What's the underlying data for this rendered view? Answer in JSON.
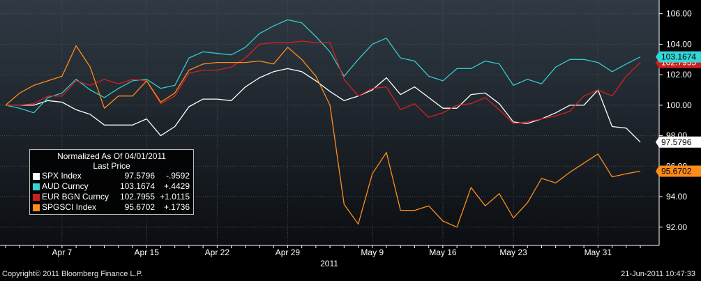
{
  "chart_data": {
    "type": "line",
    "title": "",
    "x": [
      "2011-04-01",
      "2011-04-04",
      "2011-04-05",
      "2011-04-06",
      "2011-04-07",
      "2011-04-08",
      "2011-04-11",
      "2011-04-12",
      "2011-04-13",
      "2011-04-14",
      "2011-04-15",
      "2011-04-18",
      "2011-04-19",
      "2011-04-20",
      "2011-04-21",
      "2011-04-22",
      "2011-04-25",
      "2011-04-26",
      "2011-04-27",
      "2011-04-28",
      "2011-04-29",
      "2011-05-02",
      "2011-05-03",
      "2011-05-04",
      "2011-05-05",
      "2011-05-06",
      "2011-05-09",
      "2011-05-10",
      "2011-05-11",
      "2011-05-12",
      "2011-05-13",
      "2011-05-16",
      "2011-05-17",
      "2011-05-18",
      "2011-05-19",
      "2011-05-20",
      "2011-05-23",
      "2011-05-24",
      "2011-05-25",
      "2011-05-26",
      "2011-05-27",
      "2011-05-30",
      "2011-05-31",
      "2011-06-01",
      "2011-06-02",
      "2011-06-03"
    ],
    "x_ticks": [
      {
        "date": "2011-04-07",
        "label": "Apr 7"
      },
      {
        "date": "2011-04-15",
        "label": "Apr 15"
      },
      {
        "date": "2011-04-22",
        "label": "Apr 22"
      },
      {
        "date": "2011-04-29",
        "label": "Apr 29"
      },
      {
        "date": "2011-05-09",
        "label": "May 9"
      },
      {
        "date": "2011-05-16",
        "label": "May 16"
      },
      {
        "date": "2011-05-23",
        "label": "May 23"
      },
      {
        "date": "2011-05-31",
        "label": "May 31"
      }
    ],
    "x_year_label": "2011",
    "y_ticks": [
      92.0,
      94.0,
      96.0,
      98.0,
      100.0,
      102.0,
      104.0,
      106.0
    ],
    "y_tick_labels": [
      "92.00",
      "94.00",
      "96.00",
      "98.00",
      "100.00",
      "102.00",
      "104.00",
      "106.00"
    ],
    "ylim": [
      90.8,
      106.9
    ],
    "y_axis_position": "right",
    "grid": true,
    "legend_placement": "bottom-left",
    "legend": {
      "title_line1": "Normalized As Of 04/01/2011",
      "title_line2": "Last Price"
    },
    "series": [
      {
        "name": "SPX Index",
        "last_price": "97.5796",
        "change": "-.9592",
        "color": "#ffffff",
        "tag_bg": "#ffffff",
        "tag_fg": "#000000",
        "values": [
          100.0,
          100.0,
          100.0,
          100.3,
          100.2,
          99.7,
          99.4,
          98.7,
          98.7,
          98.7,
          99.1,
          98.0,
          98.6,
          99.9,
          100.4,
          100.4,
          100.3,
          101.2,
          101.8,
          102.2,
          102.4,
          102.2,
          101.6,
          100.9,
          100.3,
          100.6,
          101.0,
          101.8,
          100.7,
          101.2,
          100.5,
          99.8,
          99.8,
          100.7,
          100.8,
          100.1,
          98.9,
          98.8,
          99.1,
          99.5,
          100.0,
          100.0,
          101.0,
          98.6,
          98.5,
          97.5796
        ]
      },
      {
        "name": "AUD Curncy",
        "last_price": "103.1674",
        "change": "+.4429",
        "color": "#33cccc",
        "tag_bg": "#33d6d6",
        "tag_fg": "#000000",
        "values": [
          100.0,
          99.8,
          99.5,
          100.5,
          100.8,
          101.7,
          101.0,
          100.5,
          101.1,
          101.6,
          101.7,
          101.1,
          101.3,
          103.1,
          103.5,
          103.4,
          103.3,
          103.8,
          104.7,
          105.2,
          105.6,
          105.4,
          104.5,
          103.5,
          101.9,
          103.0,
          104.0,
          104.4,
          103.1,
          102.9,
          101.9,
          101.6,
          102.4,
          102.4,
          102.9,
          102.7,
          101.3,
          101.7,
          101.4,
          102.5,
          103.0,
          103.0,
          102.8,
          102.2,
          102.7,
          103.1674
        ]
      },
      {
        "name": "EUR BGN Curncy",
        "last_price": "102.7955",
        "change": "+1.0115",
        "color": "#d62020",
        "tag_bg": "#cc1f1f",
        "tag_fg": "#ffffff",
        "values": [
          100.0,
          100.0,
          100.1,
          100.6,
          100.6,
          101.6,
          101.3,
          101.7,
          101.4,
          101.7,
          101.6,
          100.1,
          100.6,
          102.1,
          102.3,
          102.3,
          102.5,
          103.1,
          104.0,
          104.1,
          104.1,
          104.2,
          104.1,
          104.1,
          101.7,
          100.6,
          101.1,
          101.2,
          99.7,
          100.1,
          99.2,
          99.5,
          100.0,
          100.1,
          100.5,
          99.7,
          98.8,
          98.9,
          99.1,
          99.3,
          99.6,
          100.6,
          101.0,
          100.6,
          101.9,
          102.7955
        ]
      },
      {
        "name": "SPGSCI Index",
        "last_price": "95.6702",
        "change": "+.1736",
        "color": "#ff8c1a",
        "tag_bg": "#ff8c1a",
        "tag_fg": "#000000",
        "values": [
          100.0,
          100.8,
          101.3,
          101.6,
          101.9,
          103.9,
          102.5,
          99.8,
          100.6,
          100.6,
          101.6,
          100.2,
          100.8,
          102.3,
          102.7,
          102.8,
          102.8,
          102.8,
          102.9,
          102.7,
          103.8,
          103.0,
          101.9,
          100.0,
          93.5,
          92.2,
          95.5,
          96.9,
          93.1,
          93.1,
          93.4,
          92.4,
          92.0,
          94.6,
          93.4,
          94.2,
          92.6,
          93.6,
          95.2,
          94.9,
          95.6,
          96.2,
          96.8,
          95.3,
          95.5,
          95.6702
        ]
      }
    ]
  },
  "footer": {
    "copyright": "Copyright© 2011 Bloomberg Finance L.P.",
    "timestamp": "21-Jun-2011 10:47:33"
  }
}
